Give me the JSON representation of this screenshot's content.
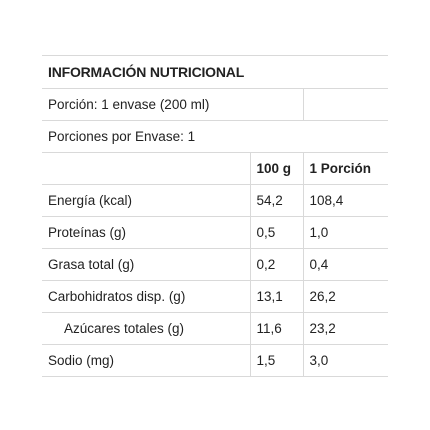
{
  "table": {
    "title": "INFORMACIÓN NUTRICIONAL",
    "serving": "Porción: 1 envase (200 ml)",
    "servings_per_container": "Porciones por Envase: 1",
    "col_100g": "100 g",
    "col_portion": "1 Porción",
    "rows": [
      {
        "label": "Energía (kcal)",
        "v100": "54,2",
        "vportion": "108,4"
      },
      {
        "label": "Proteínas (g)",
        "v100": "0,5",
        "vportion": "1,0"
      },
      {
        "label": "Grasa total (g)",
        "v100": "0,2",
        "vportion": "0,4"
      },
      {
        "label": "Carbohidratos disp. (g)",
        "v100": "13,1",
        "vportion": "26,2"
      },
      {
        "label": "Azúcares totales (g)",
        "v100": "11,6",
        "vportion": "23,2"
      },
      {
        "label": "Sodio (mg)",
        "v100": "1,5",
        "vportion": "3,0"
      }
    ]
  }
}
